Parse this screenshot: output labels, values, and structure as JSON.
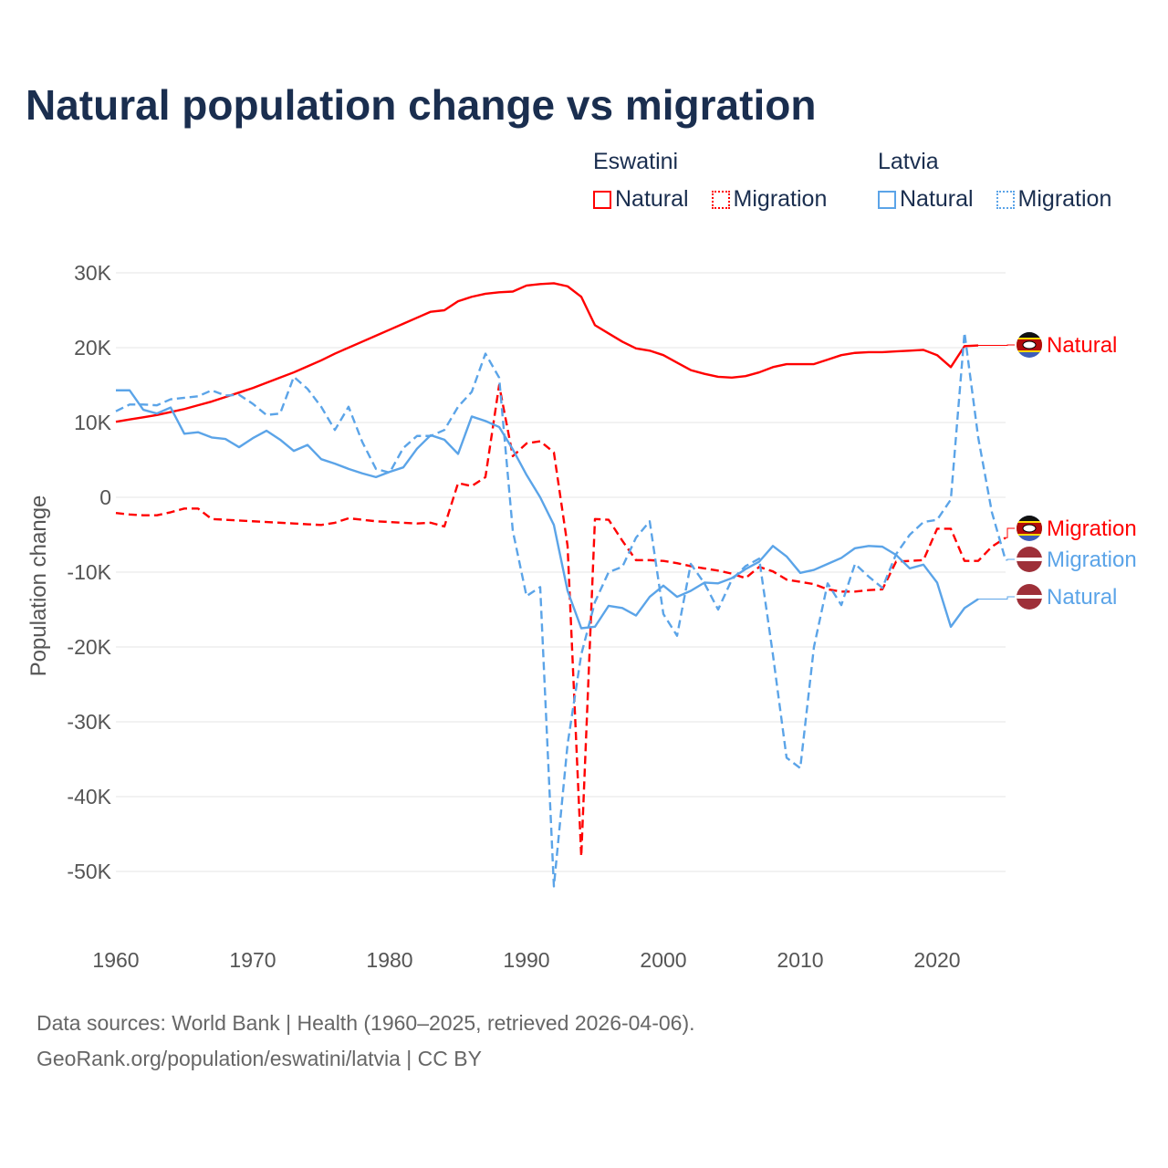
{
  "chart_data": {
    "type": "line",
    "title": "Natural population change vs migration",
    "xlabel": "",
    "ylabel": "Population change",
    "xlim": [
      1960,
      2025
    ],
    "ylim": [
      -50000,
      30000
    ],
    "x_ticks": [
      "1960",
      "1970",
      "1980",
      "1990",
      "2000",
      "2010",
      "2020"
    ],
    "y_ticks": [
      {
        "value": 30000,
        "label": "30K"
      },
      {
        "value": 20000,
        "label": "20K"
      },
      {
        "value": 10000,
        "label": "10K"
      },
      {
        "value": 0,
        "label": "0"
      },
      {
        "value": -10000,
        "label": "-10K"
      },
      {
        "value": -20000,
        "label": "-20K"
      },
      {
        "value": -30000,
        "label": "-30K"
      },
      {
        "value": -40000,
        "label": "-40K"
      },
      {
        "value": -50000,
        "label": "-50K"
      }
    ],
    "grid": true,
    "legend_placement": "top-right",
    "legend": [
      {
        "group": "Eswatini",
        "items": [
          "Natural",
          "Migration"
        ]
      },
      {
        "group": "Latvia",
        "items": [
          "Natural",
          "Migration"
        ]
      }
    ],
    "units": "thousands",
    "series": [
      {
        "name": "Natural",
        "country": "Eswatini",
        "color": "#ff0000",
        "dash": false,
        "start_year": 1960,
        "values": [
          10.1,
          10.4,
          10.7,
          11.0,
          11.4,
          11.8,
          12.3,
          12.8,
          13.4,
          14.0,
          14.6,
          15.3,
          16.0,
          16.7,
          17.5,
          18.3,
          19.2,
          20.0,
          20.8,
          21.6,
          22.4,
          23.2,
          24.0,
          24.8,
          25.0,
          26.2,
          26.8,
          27.2,
          27.4,
          27.5,
          28.3,
          28.5,
          28.6,
          28.2,
          26.8,
          23.0,
          21.9,
          20.8,
          19.9,
          19.6,
          19.0,
          18.0,
          17.0,
          16.5,
          16.1,
          16.0,
          16.2,
          16.7,
          17.4,
          17.8,
          17.8,
          17.8,
          18.4,
          19.0,
          19.3,
          19.4,
          19.4,
          19.5,
          19.6,
          19.7,
          19.0,
          17.4,
          20.2,
          20.3
        ]
      },
      {
        "name": "Migration",
        "country": "Eswatini",
        "color": "#ff0000",
        "dash": true,
        "start_year": 1960,
        "values": [
          -2.1,
          -2.3,
          -2.4,
          -2.4,
          -2.0,
          -1.5,
          -1.5,
          -2.9,
          -3.0,
          -3.1,
          -3.2,
          -3.3,
          -3.4,
          -3.5,
          -3.6,
          -3.7,
          -3.4,
          -2.8,
          -3.0,
          -3.2,
          -3.3,
          -3.4,
          -3.5,
          -3.4,
          -3.9,
          1.9,
          1.5,
          2.7,
          15.0,
          5.5,
          7.2,
          7.5,
          6.0,
          -6.5,
          -48,
          -2.9,
          -3.0,
          -5.8,
          -8.4,
          -8.4,
          -8.5,
          -8.8,
          -9.2,
          -9.5,
          -9.8,
          -10.2,
          -10.8,
          -9.3,
          -9.9,
          -11.0,
          -11.3,
          -11.6,
          -12.3,
          -12.6,
          -12.6,
          -12.4,
          -12.3,
          -8.6,
          -8.5,
          -8.4,
          -4.2,
          -4.2,
          -8.5,
          -8.5,
          -6.6,
          -5.4
        ]
      },
      {
        "name": "Natural",
        "country": "Latvia",
        "color": "#5ba4e8",
        "dash": false,
        "start_year": 1960,
        "values": [
          14.3,
          14.3,
          11.7,
          11.2,
          12.0,
          8.5,
          8.7,
          8.0,
          7.8,
          6.7,
          7.9,
          8.9,
          7.7,
          6.2,
          7.0,
          5.1,
          4.5,
          3.8,
          3.2,
          2.7,
          3.4,
          4.0,
          6.5,
          8.3,
          7.7,
          5.8,
          10.8,
          10.2,
          9.4,
          6.4,
          3.0,
          0.0,
          -3.7,
          -12.5,
          -17.5,
          -17.3,
          -14.5,
          -14.8,
          -15.8,
          -13.3,
          -11.8,
          -13.3,
          -12.5,
          -11.4,
          -11.5,
          -10.8,
          -9.6,
          -8.6,
          -6.5,
          -7.9,
          -10.1,
          -9.7,
          -8.9,
          -8.1,
          -6.8,
          -6.5,
          -6.6,
          -7.7,
          -9.5,
          -9.0,
          -11.4,
          -17.3,
          -14.8,
          -13.6
        ]
      },
      {
        "name": "Migration",
        "country": "Latvia",
        "color": "#5ba4e8",
        "dash": true,
        "start_year": 1960,
        "values": [
          11.5,
          12.4,
          12.4,
          12.3,
          13.1,
          13.3,
          13.5,
          14.3,
          13.6,
          13.7,
          12.5,
          11.0,
          11.2,
          16.1,
          14.5,
          12.1,
          9.0,
          12.1,
          7.4,
          3.8,
          3.3,
          6.6,
          8.2,
          8.2,
          9.0,
          12.1,
          14.1,
          19.2,
          16.0,
          -4.5,
          -13.2,
          -12.0,
          -52,
          -33,
          -21,
          -14,
          -10,
          -9.3,
          -5.4,
          -3.2,
          -15.6,
          -18.5,
          -8.9,
          -11.5,
          -15.0,
          -11.0,
          -9.2,
          -8.2,
          -21,
          -34.8,
          -36.2,
          -20,
          -11.5,
          -14.4,
          -8.9,
          -10.6,
          -12.1,
          -7.6,
          -5.0,
          -3.3,
          -3.0,
          -0.3,
          22.0,
          8.0,
          -2.0,
          -8.4
        ]
      }
    ]
  },
  "legend": {
    "groups": [
      {
        "title": "Eswatini",
        "items": [
          {
            "label": "Natural",
            "color": "#ff0000",
            "style": "solid"
          },
          {
            "label": "Migration",
            "color": "#ff0000",
            "style": "dotted"
          }
        ]
      },
      {
        "title": "Latvia",
        "items": [
          {
            "label": "Natural",
            "color": "#5ba4e8",
            "style": "solid"
          },
          {
            "label": "Migration",
            "color": "#5ba4e8",
            "style": "dotted"
          }
        ]
      }
    ]
  },
  "footer": {
    "sources": "Data sources: World Bank | Health (1960–2025, retrieved 2026-04-06).",
    "credit": "GeoRank.org/population/eswatini/latvia | CC BY"
  }
}
